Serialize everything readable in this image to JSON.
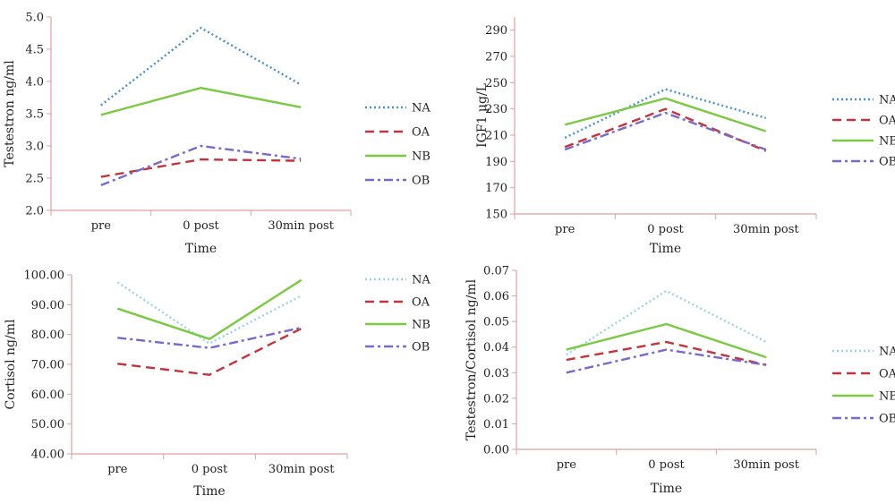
{
  "figure": {
    "series_styles": {
      "NA": {
        "color": "#4a90c9",
        "dash": "dotted"
      },
      "OA": {
        "color": "#c0353d",
        "dash": "dashed"
      },
      "NB": {
        "color": "#7ac943",
        "dash": "solid"
      },
      "OB": {
        "color": "#7b68c8",
        "dash": "dashdot"
      }
    },
    "light_series_styles": {
      "NA": {
        "color": "#9fd0ea",
        "dash": "dotted"
      },
      "OA": {
        "color": "#c0353d",
        "dash": "dashed"
      },
      "NB": {
        "color": "#7ac943",
        "dash": "solid"
      },
      "OB": {
        "color": "#7b68c8",
        "dash": "dashdot"
      }
    },
    "axis_color": "#d9a3a3"
  },
  "chart_data": [
    {
      "type": "line",
      "title": "",
      "xlabel": "Time",
      "ylabel": "Testestron ng/ml",
      "categories": [
        "pre",
        "0 post",
        "30min post"
      ],
      "ylim": [
        2.0,
        5.0
      ],
      "yticks": [
        "2.0",
        "2.5",
        "3.0",
        "3.5",
        "4.0",
        "4.5",
        "5.0"
      ],
      "legend_position": "right",
      "series": [
        {
          "name": "NA",
          "values": [
            3.63,
            4.83,
            3.95
          ]
        },
        {
          "name": "OA",
          "values": [
            2.52,
            2.79,
            2.77
          ]
        },
        {
          "name": "NB",
          "values": [
            3.48,
            3.9,
            3.6
          ]
        },
        {
          "name": "OB",
          "values": [
            2.39,
            3.0,
            2.8
          ]
        }
      ]
    },
    {
      "type": "line",
      "title": "",
      "xlabel": "Time",
      "ylabel": "IGF1 µg/L",
      "categories": [
        "pre",
        "0 post",
        "30min post"
      ],
      "ylim": [
        150,
        300
      ],
      "yticks": [
        "150",
        "170",
        "190",
        "210",
        "230",
        "250",
        "270",
        "290"
      ],
      "legend_position": "right",
      "series": [
        {
          "name": "NA",
          "values": [
            208,
            245,
            223
          ]
        },
        {
          "name": "OA",
          "values": [
            201,
            230,
            198
          ]
        },
        {
          "name": "NB",
          "values": [
            218,
            238,
            213
          ]
        },
        {
          "name": "OB",
          "values": [
            199,
            227,
            199
          ]
        }
      ]
    },
    {
      "type": "line",
      "title": "",
      "xlabel": "Time",
      "ylabel": "Cortisol ng/ml",
      "categories": [
        "pre",
        "0 post",
        "30min post"
      ],
      "ylim": [
        40,
        100
      ],
      "yticks": [
        "40.00",
        "50.00",
        "60.00",
        "70.00",
        "80.00",
        "90.00",
        "100.00"
      ],
      "legend_position": "right",
      "series": [
        {
          "name": "NA",
          "values": [
            97.5,
            77.0,
            93.0
          ]
        },
        {
          "name": "OA",
          "values": [
            70.2,
            66.5,
            82.0
          ]
        },
        {
          "name": "NB",
          "values": [
            88.7,
            78.5,
            98.3
          ]
        },
        {
          "name": "OB",
          "values": [
            78.9,
            75.5,
            82.3
          ]
        }
      ]
    },
    {
      "type": "line",
      "title": "",
      "xlabel": "Time",
      "ylabel": "Testestron/Cortisol ng/ml",
      "categories": [
        "pre",
        "0 post",
        "30min post"
      ],
      "ylim": [
        0.0,
        0.07
      ],
      "yticks": [
        "0.00",
        "0.01",
        "0.02",
        "0.03",
        "0.04",
        "0.05",
        "0.06",
        "0.07"
      ],
      "legend_position": "right",
      "series": [
        {
          "name": "NA",
          "values": [
            0.037,
            0.062,
            0.042
          ]
        },
        {
          "name": "OA",
          "values": [
            0.035,
            0.042,
            0.033
          ]
        },
        {
          "name": "NB",
          "values": [
            0.039,
            0.049,
            0.036
          ]
        },
        {
          "name": "OB",
          "values": [
            0.03,
            0.039,
            0.033
          ]
        }
      ]
    }
  ]
}
